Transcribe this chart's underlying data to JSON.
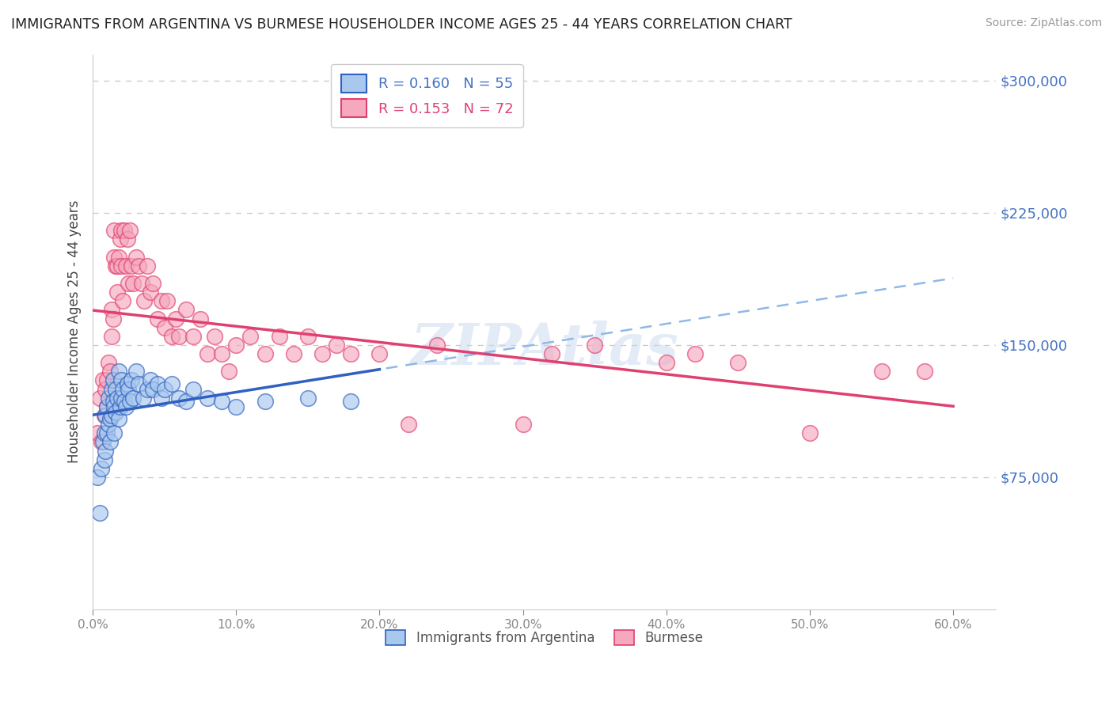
{
  "title": "IMMIGRANTS FROM ARGENTINA VS BURMESE HOUSEHOLDER INCOME AGES 25 - 44 YEARS CORRELATION CHART",
  "source": "Source: ZipAtlas.com",
  "ylabel": "Householder Income Ages 25 - 44 years",
  "xlabel_ticks": [
    "0.0%",
    "10.0%",
    "20.0%",
    "30.0%",
    "40.0%",
    "50.0%",
    "60.0%"
  ],
  "ytick_labels": [
    "$75,000",
    "$150,000",
    "$225,000",
    "$300,000"
  ],
  "ytick_values": [
    75000,
    150000,
    225000,
    300000
  ],
  "xlim": [
    0.0,
    0.63
  ],
  "ylim": [
    0,
    315000
  ],
  "legend_labels": [
    "Immigrants from Argentina",
    "Burmese"
  ],
  "R_argentina": 0.16,
  "N_argentina": 55,
  "R_burmese": 0.153,
  "N_burmese": 72,
  "color_argentina": "#A8C8EE",
  "color_burmese": "#F5A8BE",
  "color_argentina_line": "#3060C0",
  "color_burmese_line": "#E04070",
  "color_legend_text_blue": "#4472C4",
  "color_legend_text_pink": "#E04070",
  "background_color": "#FFFFFF",
  "watermark": "ZIPAtlas",
  "argentina_x": [
    0.003,
    0.005,
    0.006,
    0.007,
    0.008,
    0.008,
    0.009,
    0.009,
    0.01,
    0.01,
    0.011,
    0.011,
    0.012,
    0.012,
    0.013,
    0.013,
    0.014,
    0.014,
    0.015,
    0.015,
    0.016,
    0.016,
    0.017,
    0.018,
    0.018,
    0.019,
    0.02,
    0.02,
    0.021,
    0.022,
    0.023,
    0.024,
    0.025,
    0.026,
    0.027,
    0.028,
    0.03,
    0.032,
    0.035,
    0.038,
    0.04,
    0.042,
    0.045,
    0.048,
    0.05,
    0.055,
    0.06,
    0.065,
    0.07,
    0.08,
    0.09,
    0.1,
    0.12,
    0.15,
    0.18
  ],
  "argentina_y": [
    75000,
    55000,
    80000,
    95000,
    100000,
    85000,
    110000,
    90000,
    115000,
    100000,
    120000,
    105000,
    108000,
    95000,
    125000,
    110000,
    130000,
    118000,
    115000,
    100000,
    125000,
    112000,
    120000,
    108000,
    135000,
    115000,
    130000,
    120000,
    125000,
    118000,
    115000,
    128000,
    125000,
    118000,
    130000,
    120000,
    135000,
    128000,
    120000,
    125000,
    130000,
    125000,
    128000,
    120000,
    125000,
    128000,
    120000,
    118000,
    125000,
    120000,
    118000,
    115000,
    118000,
    120000,
    118000
  ],
  "burmese_x": [
    0.003,
    0.005,
    0.006,
    0.007,
    0.008,
    0.009,
    0.01,
    0.01,
    0.011,
    0.012,
    0.013,
    0.013,
    0.014,
    0.015,
    0.015,
    0.016,
    0.017,
    0.017,
    0.018,
    0.019,
    0.02,
    0.02,
    0.021,
    0.022,
    0.023,
    0.024,
    0.025,
    0.026,
    0.027,
    0.028,
    0.03,
    0.032,
    0.034,
    0.036,
    0.038,
    0.04,
    0.042,
    0.045,
    0.048,
    0.05,
    0.052,
    0.055,
    0.058,
    0.06,
    0.065,
    0.07,
    0.075,
    0.08,
    0.085,
    0.09,
    0.095,
    0.1,
    0.11,
    0.12,
    0.13,
    0.14,
    0.15,
    0.16,
    0.17,
    0.18,
    0.2,
    0.22,
    0.24,
    0.3,
    0.32,
    0.35,
    0.4,
    0.42,
    0.45,
    0.5,
    0.55,
    0.58
  ],
  "burmese_y": [
    100000,
    120000,
    95000,
    130000,
    110000,
    125000,
    130000,
    115000,
    140000,
    135000,
    155000,
    170000,
    165000,
    200000,
    215000,
    195000,
    195000,
    180000,
    200000,
    210000,
    195000,
    215000,
    175000,
    215000,
    195000,
    210000,
    185000,
    215000,
    195000,
    185000,
    200000,
    195000,
    185000,
    175000,
    195000,
    180000,
    185000,
    165000,
    175000,
    160000,
    175000,
    155000,
    165000,
    155000,
    170000,
    155000,
    165000,
    145000,
    155000,
    145000,
    135000,
    150000,
    155000,
    145000,
    155000,
    145000,
    155000,
    145000,
    150000,
    145000,
    145000,
    105000,
    150000,
    105000,
    145000,
    150000,
    140000,
    145000,
    140000,
    100000,
    135000,
    135000
  ]
}
